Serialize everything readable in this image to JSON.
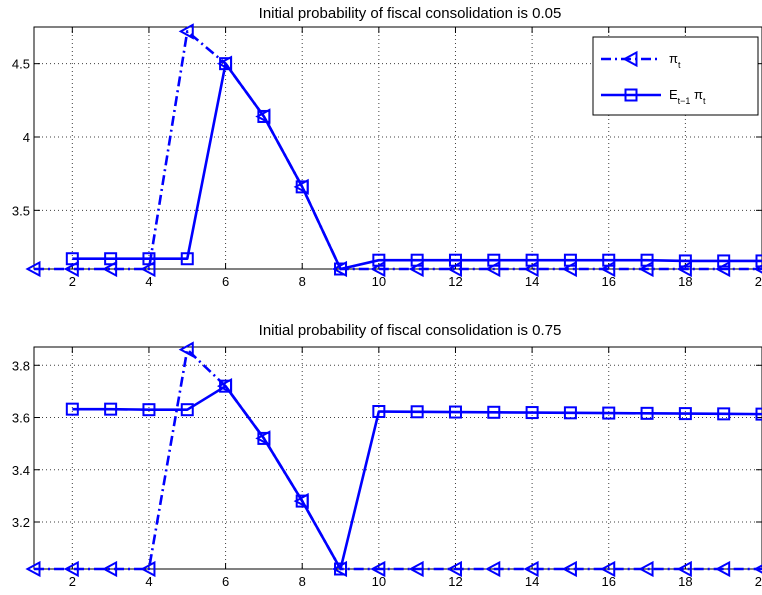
{
  "chart_data": [
    {
      "type": "line",
      "title": "Initial probability of fiscal consolidation is 0.05",
      "xlabel": "",
      "ylabel": "",
      "xlim": [
        1,
        20
      ],
      "ylim": [
        3.1,
        4.75
      ],
      "xticks": [
        2,
        4,
        6,
        8,
        10,
        12,
        14,
        16,
        18,
        20
      ],
      "xtick_labels": [
        "2",
        "4",
        "6",
        "8",
        "10",
        "12",
        "14",
        "16",
        "18",
        "20"
      ],
      "yticks": [
        3.5,
        4,
        4.5
      ],
      "ytick_labels": [
        "3.5",
        "4",
        "4.5"
      ],
      "grid": true,
      "legend_position": "top-right",
      "series": [
        {
          "name": "π_t",
          "label_main": "π",
          "label_sub": "t",
          "label_mid": "",
          "label_sub2": "",
          "marker": "triangle-left",
          "line_style": "dash-dot",
          "color": "#0000ff",
          "x": [
            1,
            2,
            3,
            4,
            5,
            6,
            7,
            8,
            9,
            10,
            11,
            12,
            13,
            14,
            15,
            16,
            17,
            18,
            19,
            20
          ],
          "values": [
            3.1,
            3.1,
            3.1,
            3.1,
            4.72,
            4.5,
            4.14,
            3.66,
            3.1,
            3.1,
            3.1,
            3.1,
            3.1,
            3.1,
            3.1,
            3.1,
            3.1,
            3.1,
            3.1,
            3.1
          ]
        },
        {
          "name": "E_{t−1} π_t",
          "label_main": "E",
          "label_sub": "t−1",
          "label_mid": " π",
          "label_sub2": "t",
          "marker": "square",
          "line_style": "solid",
          "color": "#0000ff",
          "x": [
            2,
            3,
            4,
            5,
            6,
            7,
            8,
            9,
            10,
            11,
            12,
            13,
            14,
            15,
            16,
            17,
            18,
            19,
            20
          ],
          "values": [
            3.17,
            3.17,
            3.17,
            3.17,
            4.5,
            4.14,
            3.66,
            3.1,
            3.16,
            3.16,
            3.16,
            3.16,
            3.16,
            3.16,
            3.16,
            3.16,
            3.155,
            3.155,
            3.155
          ]
        }
      ]
    },
    {
      "type": "line",
      "title": "Initial probability of fiscal consolidation is 0.75",
      "xlabel": "",
      "ylabel": "",
      "xlim": [
        1,
        20
      ],
      "ylim": [
        3.02,
        3.87
      ],
      "xticks": [
        2,
        4,
        6,
        8,
        10,
        12,
        14,
        16,
        18,
        20
      ],
      "xtick_labels": [
        "2",
        "4",
        "6",
        "8",
        "10",
        "12",
        "14",
        "16",
        "18",
        "20"
      ],
      "yticks": [
        3.2,
        3.4,
        3.6,
        3.8
      ],
      "ytick_labels": [
        "3.2",
        "3.4",
        "3.6",
        "3.8"
      ],
      "grid": true,
      "legend_position": "",
      "series": [
        {
          "name": "π_t",
          "marker": "triangle-left",
          "line_style": "dash-dot",
          "color": "#0000ff",
          "x": [
            1,
            2,
            3,
            4,
            5,
            6,
            7,
            8,
            9,
            10,
            11,
            12,
            13,
            14,
            15,
            16,
            17,
            18,
            19,
            20
          ],
          "values": [
            3.02,
            3.02,
            3.02,
            3.02,
            3.86,
            3.72,
            3.52,
            3.28,
            3.02,
            3.02,
            3.02,
            3.02,
            3.02,
            3.02,
            3.02,
            3.02,
            3.02,
            3.02,
            3.02,
            3.02
          ]
        },
        {
          "name": "E_{t−1} π_t",
          "marker": "square",
          "line_style": "solid",
          "color": "#0000ff",
          "x": [
            2,
            3,
            4,
            5,
            6,
            7,
            8,
            9,
            10,
            11,
            12,
            13,
            14,
            15,
            16,
            17,
            18,
            19,
            20
          ],
          "values": [
            3.632,
            3.632,
            3.63,
            3.63,
            3.72,
            3.52,
            3.28,
            3.02,
            3.623,
            3.622,
            3.621,
            3.62,
            3.619,
            3.618,
            3.617,
            3.616,
            3.615,
            3.614,
            3.613
          ]
        }
      ]
    }
  ]
}
